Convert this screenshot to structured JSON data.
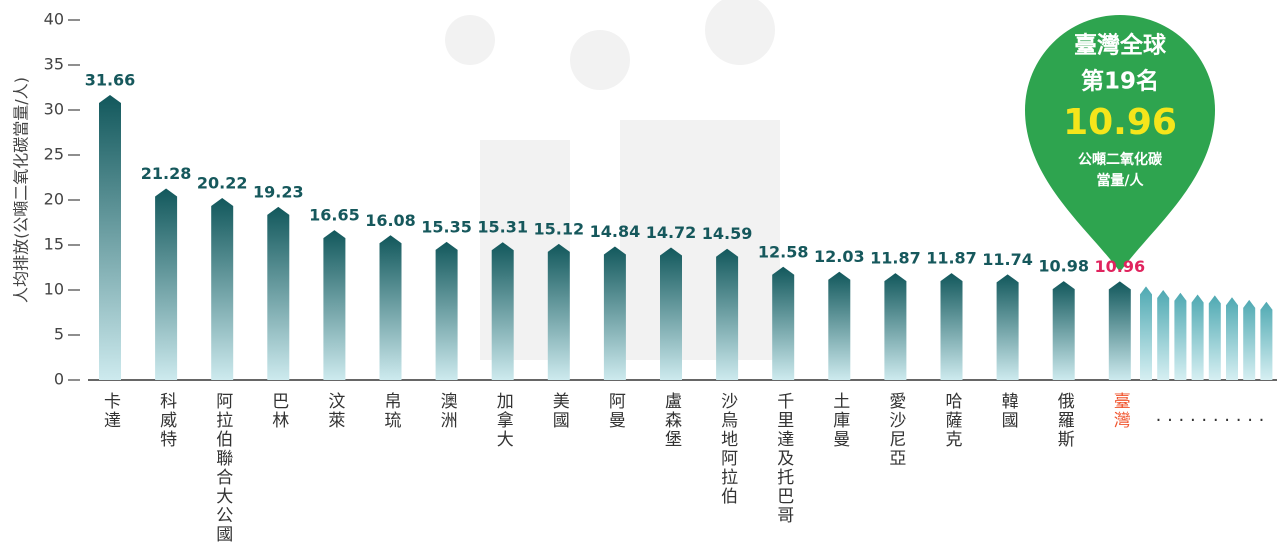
{
  "chart_data": {
    "type": "bar",
    "y_label": "人均排放(公噸二氧化碳當量/人)",
    "categories": [
      "卡達",
      "科威特",
      "阿拉伯聯合大公國",
      "巴林",
      "汶萊",
      "帛琉",
      "澳洲",
      "加拿大",
      "美國",
      "阿曼",
      "盧森堡",
      "沙烏地阿拉伯",
      "千里達及托巴哥",
      "土庫曼",
      "愛沙尼亞",
      "哈薩克",
      "韓國",
      "俄羅斯",
      "臺灣"
    ],
    "values": [
      31.66,
      21.28,
      20.22,
      19.23,
      16.65,
      16.08,
      15.35,
      15.31,
      15.12,
      14.84,
      14.72,
      14.59,
      12.58,
      12.03,
      11.87,
      11.87,
      11.74,
      10.98,
      10.96
    ],
    "category_colors": [
      "#333333",
      "#333333",
      "#333333",
      "#333333",
      "#333333",
      "#333333",
      "#333333",
      "#333333",
      "#333333",
      "#333333",
      "#333333",
      "#333333",
      "#333333",
      "#333333",
      "#333333",
      "#333333",
      "#333333",
      "#333333",
      "#f0542d"
    ],
    "value_label_colors": [
      "#16585c",
      "#16585c",
      "#16585c",
      "#16585c",
      "#16585c",
      "#16585c",
      "#16585c",
      "#16585c",
      "#16585c",
      "#16585c",
      "#16585c",
      "#16585c",
      "#16585c",
      "#16585c",
      "#16585c",
      "#16585c",
      "#16585c",
      "#16585c",
      "#e0245e"
    ],
    "color": "#15666a",
    "trailing_values": [
      10.4,
      10.0,
      9.7,
      9.5,
      9.4,
      9.2,
      8.9,
      8.7
    ],
    "trailing_color": "#5cb4bc",
    "trailing_text": ". . . . . . . . . .",
    "ylim": [
      0,
      40
    ],
    "yticks": [
      0,
      5,
      10,
      15,
      20,
      25,
      30,
      35,
      40
    ],
    "callout": {
      "line1": "臺灣全球",
      "line2": "第19名",
      "value": 10.96,
      "unit1": "公噸二氧化碳",
      "unit2": "當量/人",
      "color": "#2ea44f",
      "value_color": "#f5e51b"
    }
  }
}
